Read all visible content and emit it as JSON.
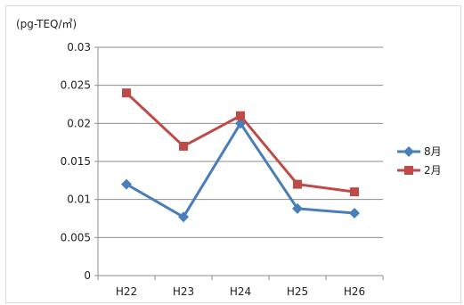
{
  "chart_data": {
    "type": "line",
    "unit_label": "(pg-TEQ/㎥)",
    "categories": [
      "H22",
      "H23",
      "H24",
      "H25",
      "H26"
    ],
    "ylim": [
      0,
      0.03
    ],
    "yticks": [
      "0",
      "0.005",
      "0.01",
      "0.015",
      "0.02",
      "0.025",
      "0.03"
    ],
    "grid": true,
    "legend_position": "right",
    "series": [
      {
        "name": "8月",
        "values": [
          0.012,
          0.0077,
          0.02,
          0.0088,
          0.0082
        ],
        "color": "#4a7ebb",
        "marker": "diamond"
      },
      {
        "name": "2月",
        "values": [
          0.024,
          0.017,
          0.021,
          0.012,
          0.011
        ],
        "color": "#be4b48",
        "marker": "square"
      }
    ]
  }
}
